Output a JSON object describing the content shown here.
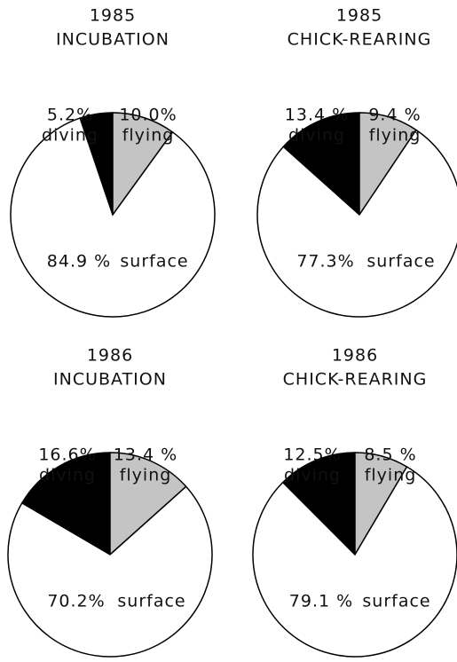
{
  "chart_data": [
    {
      "type": "pie",
      "title": "1985",
      "subtitle": "INCUBATION",
      "categories": [
        "diving",
        "flying",
        "surface"
      ],
      "values": [
        5.2,
        10.0,
        84.9
      ],
      "value_labels": [
        "5.2%",
        "10.0%",
        "84.9 %"
      ],
      "colors": [
        "#000000",
        "#c4c4c4",
        "#ffffff"
      ]
    },
    {
      "type": "pie",
      "title": "1985",
      "subtitle": "CHICK-REARING",
      "categories": [
        "diving",
        "flying",
        "surface"
      ],
      "values": [
        13.4,
        9.4,
        77.3
      ],
      "value_labels": [
        "13.4 %",
        "9.4 %",
        "77.3%"
      ],
      "colors": [
        "#000000",
        "#c4c4c4",
        "#ffffff"
      ]
    },
    {
      "type": "pie",
      "title": "1986",
      "subtitle": "INCUBATION",
      "categories": [
        "diving",
        "flying",
        "surface"
      ],
      "values": [
        16.6,
        13.4,
        70.2
      ],
      "value_labels": [
        "16.6%",
        "13.4 %",
        "70.2%"
      ],
      "colors": [
        "#000000",
        "#c4c4c4",
        "#ffffff"
      ]
    },
    {
      "type": "pie",
      "title": "1986",
      "subtitle": "CHICK-REARING",
      "categories": [
        "diving",
        "flying",
        "surface"
      ],
      "values": [
        12.5,
        8.5,
        79.1
      ],
      "value_labels": [
        "12.5%",
        "8.5 %",
        "79.1 %"
      ],
      "colors": [
        "#000000",
        "#c4c4c4",
        "#ffffff"
      ]
    }
  ]
}
